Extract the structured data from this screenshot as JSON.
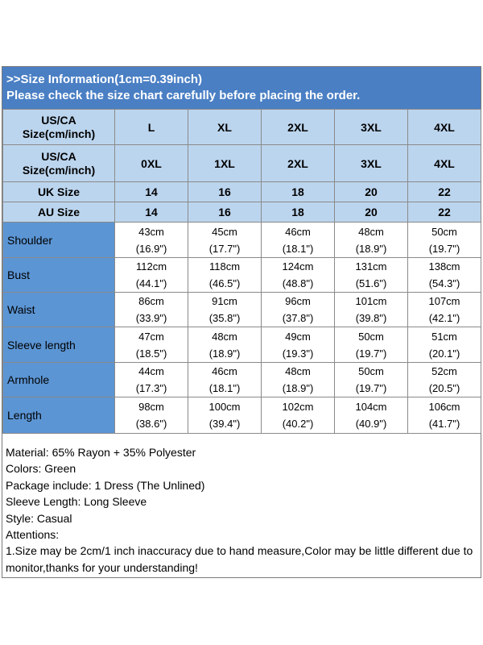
{
  "header": {
    "line1": ">>Size Information(1cm=0.39inch)",
    "line2": "Please check the size chart carefully before placing the order."
  },
  "size_rows": [
    {
      "label_line1": "US/CA",
      "label_line2": "Size(cm/inch)",
      "values": [
        "L",
        "XL",
        "2XL",
        "3XL",
        "4XL"
      ]
    },
    {
      "label_line1": "US/CA",
      "label_line2": "Size(cm/inch)",
      "values": [
        "0XL",
        "1XL",
        "2XL",
        "3XL",
        "4XL"
      ]
    },
    {
      "label_line1": "UK Size",
      "label_line2": "",
      "values": [
        "14",
        "16",
        "18",
        "20",
        "22"
      ]
    },
    {
      "label_line1": "AU Size",
      "label_line2": "",
      "values": [
        "14",
        "16",
        "18",
        "20",
        "22"
      ]
    }
  ],
  "measure_rows": [
    {
      "label": "Shoulder",
      "cm": [
        "43cm",
        "45cm",
        "46cm",
        "48cm",
        "50cm"
      ],
      "inch": [
        "(16.9\")",
        "(17.7\")",
        "(18.1\")",
        "(18.9\")",
        "(19.7\")"
      ]
    },
    {
      "label": "Bust",
      "cm": [
        "112cm",
        "118cm",
        "124cm",
        "131cm",
        "138cm"
      ],
      "inch": [
        "(44.1\")",
        "(46.5\")",
        "(48.8\")",
        "(51.6\")",
        "(54.3\")"
      ]
    },
    {
      "label": "Waist",
      "cm": [
        "86cm",
        "91cm",
        "96cm",
        "101cm",
        "107cm"
      ],
      "inch": [
        "(33.9\")",
        "(35.8\")",
        "(37.8\")",
        "(39.8\")",
        "(42.1\")"
      ]
    },
    {
      "label": "Sleeve length",
      "cm": [
        "47cm",
        "48cm",
        "49cm",
        "50cm",
        "51cm"
      ],
      "inch": [
        "(18.5\")",
        "(18.9\")",
        "(19.3\")",
        "(19.7\")",
        "(20.1\")"
      ]
    },
    {
      "label": "Armhole",
      "cm": [
        "44cm",
        "46cm",
        "48cm",
        "50cm",
        "52cm"
      ],
      "inch": [
        "(17.3\")",
        "(18.1\")",
        "(18.9\")",
        "(19.7\")",
        "(20.5\")"
      ]
    },
    {
      "label": "Length",
      "cm": [
        "98cm",
        "100cm",
        "102cm",
        "104cm",
        "106cm"
      ],
      "inch": [
        "(38.6\")",
        "(39.4\")",
        "(40.2\")",
        "(40.9\")",
        "(41.7\")"
      ]
    }
  ],
  "notes": [
    "Material: 65% Rayon + 35% Polyester",
    "Colors: Green",
    "Package include: 1 Dress (The Unlined)",
    "Sleeve Length: Long Sleeve",
    "Style: Casual",
    "Attentions:",
    "1.Size may be 2cm/1 inch inaccuracy due to hand measure,Color may be little different due to monitor,thanks for your understanding!"
  ],
  "colors": {
    "header_bg": "#4a7fc4",
    "size_row_bg": "#bcd5ee",
    "measure_label_bg": "#5b95d4"
  }
}
